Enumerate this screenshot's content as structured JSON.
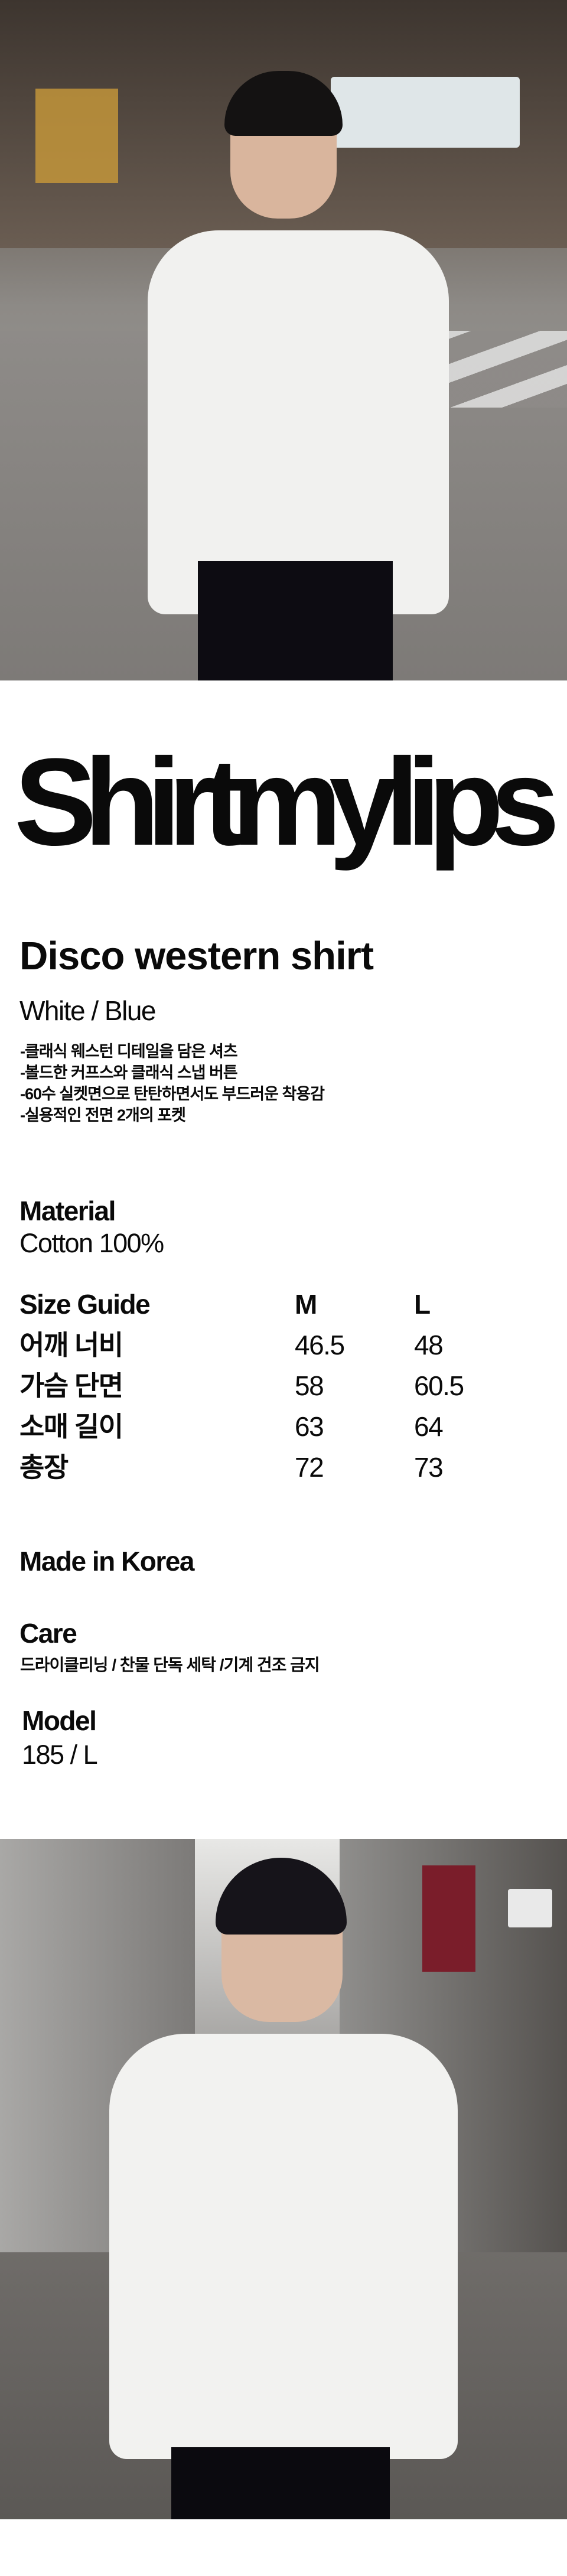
{
  "brand": "Shirtmylips",
  "product": {
    "name": "Disco western shirt",
    "colors": "White / Blue",
    "features": [
      "-클래식 웨스턴 디테일을 담은 셔츠",
      "-볼드한 커프스와 클래식 스냅 버튼",
      "-60수 실켓면으로 탄탄하면서도 부드러운 착용감",
      "-실용적인 전면 2개의 포켓"
    ]
  },
  "material": {
    "label": "Material",
    "value": "Cotton 100%"
  },
  "size_guide": {
    "header": [
      "Size Guide",
      "M",
      "L"
    ],
    "rows": [
      [
        "어깨 너비",
        "46.5",
        "48"
      ],
      [
        "가슴 단면",
        "58",
        "60.5"
      ],
      [
        "소매 길이",
        "63",
        "64"
      ],
      [
        "총장",
        "72",
        "73"
      ]
    ]
  },
  "origin": "Made in Korea",
  "care": {
    "label": "Care",
    "value": "드라이클리닝 / 찬물 단독 세탁 /기계 건조 금지"
  },
  "model": {
    "label": "Model",
    "value": "185 / L"
  }
}
